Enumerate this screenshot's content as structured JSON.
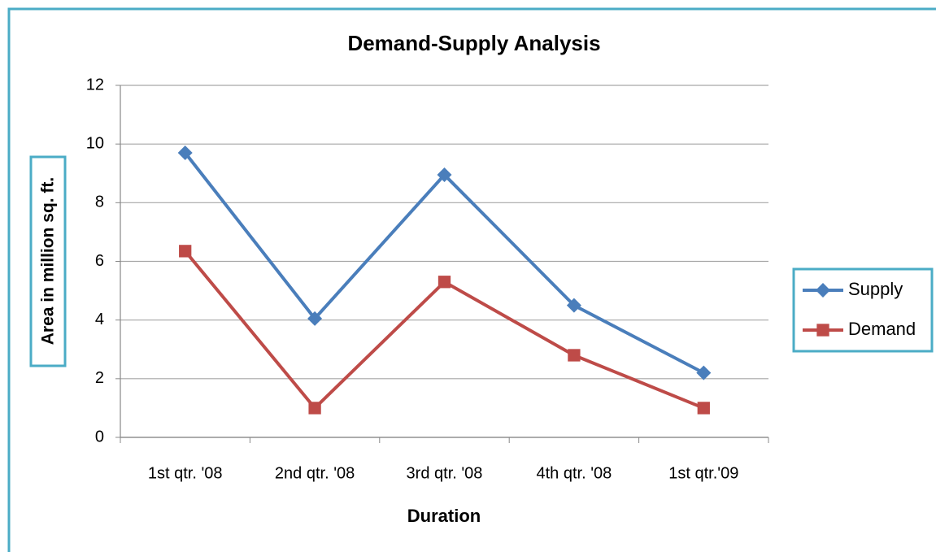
{
  "chart_data": {
    "type": "line",
    "title": "Demand-Supply Analysis",
    "x_label": "Duration",
    "y_label": "Area in million sq. ft.",
    "categories": [
      "1st qtr. '08",
      "2nd qtr. '08",
      "3rd qtr. '08",
      "4th qtr. '08",
      "1st qtr.'09"
    ],
    "series": [
      {
        "name": "Supply",
        "color": "#4a7ebb",
        "marker": "diamond",
        "values": [
          9.7,
          4.05,
          8.95,
          4.5,
          2.2
        ]
      },
      {
        "name": "Demand",
        "color": "#be4b48",
        "marker": "square",
        "values": [
          6.35,
          1.0,
          5.3,
          2.8,
          1.0
        ]
      }
    ],
    "ylim": [
      0,
      12
    ],
    "yticks": [
      0,
      2,
      4,
      6,
      8,
      10,
      12
    ],
    "grid": true,
    "legend": "right"
  }
}
